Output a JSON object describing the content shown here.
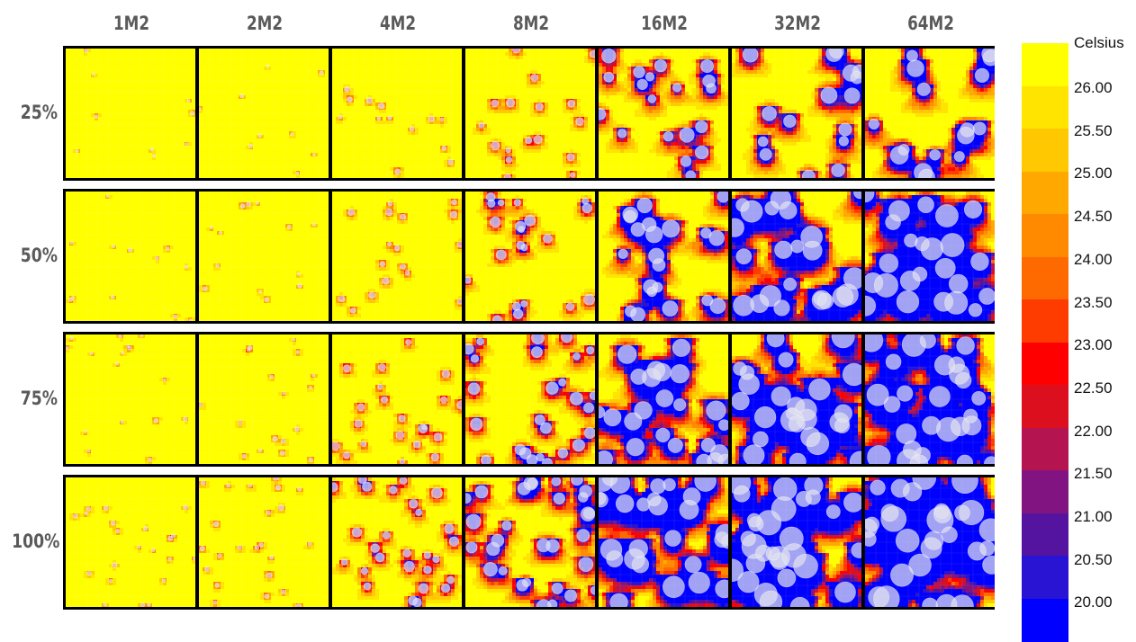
{
  "chart_data": {
    "type": "heatmap",
    "columns": [
      "1M2",
      "2M2",
      "4M2",
      "8M2",
      "16M2",
      "32M2",
      "64M2"
    ],
    "rows": [
      "25%",
      "50%",
      "75%",
      "100%"
    ],
    "colorbar": {
      "title": "Celsius",
      "tick_labels": [
        "26.00",
        "25.50",
        "25.00",
        "24.50",
        "24.00",
        "23.50",
        "23.00",
        "22.50",
        "22.00",
        "21.50",
        "21.00",
        "20.50",
        "20.00"
      ],
      "range": [
        20.0,
        26.0
      ],
      "colors": [
        "#ffff00",
        "#ffe400",
        "#ffc800",
        "#ffa800",
        "#ff8a00",
        "#ff6a00",
        "#ff3c00",
        "#ff0000",
        "#dc0f1e",
        "#b41450",
        "#821482",
        "#5514a0",
        "#2814d2",
        "#0000ff"
      ]
    },
    "intensity": [
      [
        0.02,
        0.03,
        0.1,
        0.22,
        0.45,
        0.52,
        0.6
      ],
      [
        0.03,
        0.04,
        0.14,
        0.3,
        0.55,
        0.72,
        0.8
      ],
      [
        0.04,
        0.06,
        0.22,
        0.38,
        0.62,
        0.75,
        0.85
      ],
      [
        0.06,
        0.1,
        0.3,
        0.45,
        0.72,
        0.85,
        0.9
      ]
    ],
    "tree_density": [
      [
        0.1,
        0.12,
        0.25,
        0.4,
        0.45,
        0.35,
        0.35
      ],
      [
        0.2,
        0.25,
        0.4,
        0.55,
        0.55,
        0.6,
        0.65
      ],
      [
        0.35,
        0.4,
        0.55,
        0.7,
        0.65,
        0.7,
        0.75
      ],
      [
        0.55,
        0.6,
        0.75,
        0.85,
        0.8,
        0.85,
        0.85
      ]
    ]
  }
}
